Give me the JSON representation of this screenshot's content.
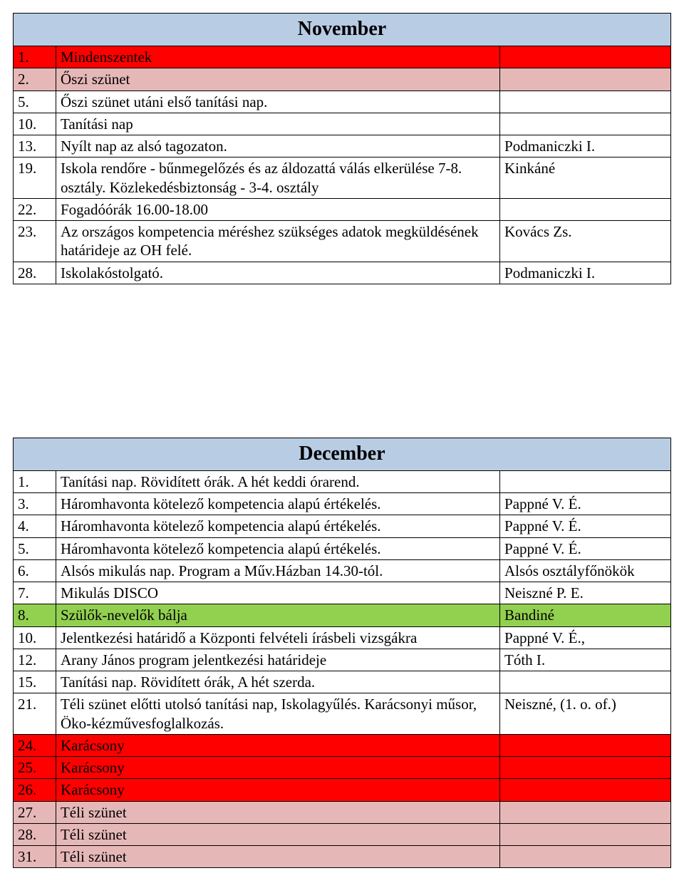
{
  "colors": {
    "header_blue": "#b8cce4",
    "row_red": "#ff0000",
    "row_pink": "#e5b8b7",
    "row_white": "#ffffff",
    "row_green": "#92d050",
    "border": "#000000",
    "text": "#000000"
  },
  "tables": [
    {
      "title": "November",
      "rows": [
        {
          "num": "1.",
          "desc": "Mindenszentek",
          "resp": "",
          "bg": "row_red"
        },
        {
          "num": "2.",
          "desc": "Őszi szünet",
          "resp": "",
          "bg": "row_pink"
        },
        {
          "num": "5.",
          "desc": "Őszi szünet utáni első tanítási nap.",
          "resp": "",
          "bg": "row_white"
        },
        {
          "num": "10.",
          "desc": "Tanítási nap",
          "resp": "",
          "bg": "row_white"
        },
        {
          "num": "13.",
          "desc": "Nyílt nap az alsó tagozaton.",
          "resp": "Podmaniczki I.",
          "bg": "row_white"
        },
        {
          "num": "19.",
          "desc": "Iskola rendőre - bűnmegelőzés és az áldozattá válás elkerülése 7-8. osztály. Közlekedésbiztonság - 3-4. osztály",
          "resp": "Kinkáné",
          "bg": "row_white"
        },
        {
          "num": "22.",
          "desc": "Fogadóórák 16.00-18.00",
          "resp": "",
          "bg": "row_white"
        },
        {
          "num": "23.",
          "desc": "Az országos kompetencia méréshez szükséges adatok megküldésének határideje az OH felé.",
          "resp": "Kovács Zs.",
          "bg": "row_white"
        },
        {
          "num": "28.",
          "desc": "Iskolakóstolgató.",
          "resp": "Podmaniczki I.",
          "bg": "row_white"
        }
      ]
    },
    {
      "title": "December",
      "rows": [
        {
          "num": "1.",
          "desc": "Tanítási nap. Rövidített órák. A hét keddi órarend.",
          "resp": "",
          "bg": "row_white"
        },
        {
          "num": "3.",
          "desc": "Háromhavonta kötelező kompetencia alapú értékelés.",
          "resp": "Pappné V. É.",
          "bg": "row_white"
        },
        {
          "num": "4.",
          "desc": "Háromhavonta kötelező kompetencia alapú értékelés.",
          "resp": "Pappné V. É.",
          "bg": "row_white"
        },
        {
          "num": "5.",
          "desc": " Háromhavonta kötelező kompetencia alapú értékelés.",
          "resp": "Pappné V. É.",
          "bg": "row_white"
        },
        {
          "num": "6.",
          "desc": "Alsós mikulás nap. Program a Műv.Házban 14.30-tól.",
          "resp": "Alsós osztályfőnökök",
          "bg": "row_white"
        },
        {
          "num": "7.",
          "desc": "Mikulás DISCO",
          "resp": "Neiszné P. E.",
          "bg": "row_white"
        },
        {
          "num": "8.",
          "desc": "Szülők-nevelők bálja",
          "resp": "Bandiné",
          "bg": "row_green"
        },
        {
          "num": "10.",
          "desc": "Jelentkezési határidő a Központi felvételi írásbeli vizsgákra",
          "resp": "Pappné V. É.,",
          "bg": "row_white"
        },
        {
          "num": "12.",
          "desc": "Arany János program jelentkezési határideje",
          "resp": " Tóth I.",
          "bg": "row_white"
        },
        {
          "num": "15.",
          "desc": "Tanítási nap. Rövidített órák, A hét szerda.",
          "resp": "",
          "bg": "row_white"
        },
        {
          "num": "21.",
          "desc": "Téli szünet előtti utolsó tanítási nap, Iskolagyűlés. Karácsonyi műsor, Öko-kézművesfoglalkozás.",
          "resp": "Neiszné,  (1. o. of.)",
          "bg": "row_white"
        },
        {
          "num": "24.",
          "desc": "Karácsony",
          "resp": "",
          "bg": "row_red"
        },
        {
          "num": "25.",
          "desc": "Karácsony",
          "resp": "",
          "bg": "row_red"
        },
        {
          "num": "26.",
          "desc": "Karácsony",
          "resp": "",
          "bg": "row_red"
        },
        {
          "num": "27.",
          "desc": "Téli szünet",
          "resp": "",
          "bg": "row_pink"
        },
        {
          "num": "28.",
          "desc": "Téli szünet",
          "resp": "",
          "bg": "row_pink"
        },
        {
          "num": "31.",
          "desc": "Téli szünet",
          "resp": "",
          "bg": "row_pink"
        }
      ]
    }
  ]
}
